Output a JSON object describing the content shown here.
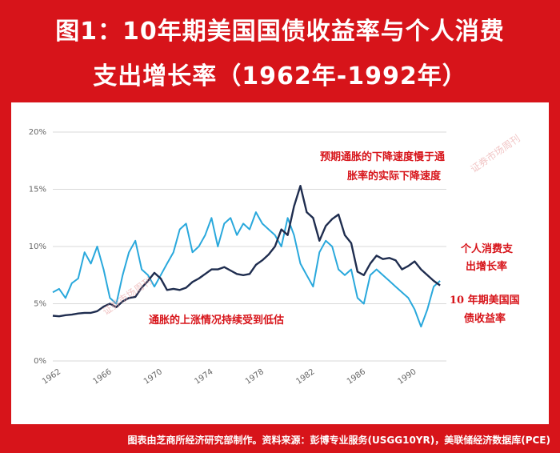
{
  "header": {
    "line1": "图1：10年期美国国债收益率与个人消费",
    "line2": "支出增长率（1962年-1992年）"
  },
  "footer": {
    "source": "图表由芝商所经济研究部制作。资料来源：彭博专业服务(USGG10YR)，美联储经济数据库(PCE)"
  },
  "watermark": "证券市场周刊",
  "chart_data": {
    "type": "line",
    "title": "",
    "xlabel": "",
    "ylabel": "",
    "ylim": [
      0,
      20
    ],
    "xlim": [
      1962,
      1993
    ],
    "grid": "horizontal",
    "y_ticks": [
      "0%",
      "5%",
      "10%",
      "15%",
      "20%"
    ],
    "x_ticks": [
      "1962",
      "1966",
      "1970",
      "1974",
      "1978",
      "1982",
      "1986",
      "1990"
    ],
    "series": [
      {
        "name": "个人消费支出增长率",
        "color": "#29a8dc",
        "x": [
          1962,
          1962.5,
          1963,
          1963.5,
          1964,
          1964.5,
          1965,
          1965.5,
          1966,
          1966.5,
          1967,
          1967.5,
          1968,
          1968.5,
          1969,
          1969.5,
          1970,
          1970.5,
          1971,
          1971.5,
          1972,
          1972.5,
          1973,
          1973.5,
          1974,
          1974.5,
          1975,
          1975.5,
          1976,
          1976.5,
          1977,
          1977.5,
          1978,
          1978.5,
          1979,
          1979.5,
          1980,
          1980.5,
          1981,
          1981.5,
          1982,
          1982.5,
          1983,
          1983.5,
          1984,
          1984.5,
          1985,
          1985.5,
          1986,
          1986.5,
          1987,
          1987.5,
          1988,
          1988.5,
          1989,
          1989.5,
          1990,
          1990.5,
          1991,
          1991.5,
          1992,
          1992.5
        ],
        "values": [
          6.0,
          6.3,
          5.5,
          6.8,
          7.2,
          9.5,
          8.5,
          10.0,
          8.0,
          5.5,
          5.0,
          7.5,
          9.5,
          10.5,
          8.0,
          7.5,
          6.5,
          7.5,
          8.5,
          9.5,
          11.5,
          12.0,
          9.5,
          10.0,
          11.0,
          12.5,
          10.0,
          12.0,
          12.5,
          11.0,
          12.0,
          11.5,
          13.0,
          12.0,
          11.5,
          11.0,
          10.0,
          12.5,
          11.0,
          8.5,
          7.5,
          6.5,
          9.5,
          10.5,
          10.0,
          8.0,
          7.5,
          8.0,
          5.5,
          5.0,
          7.5,
          8.0,
          7.5,
          7.0,
          6.5,
          6.0,
          5.5,
          4.5,
          3.0,
          4.5,
          6.5,
          7.0
        ]
      },
      {
        "name": "10年期美国国债收益率",
        "color": "#1f2d4f",
        "x": [
          1962,
          1962.5,
          1963,
          1963.5,
          1964,
          1964.5,
          1965,
          1965.5,
          1966,
          1966.5,
          1967,
          1967.5,
          1968,
          1968.5,
          1969,
          1969.5,
          1970,
          1970.5,
          1971,
          1971.5,
          1972,
          1972.5,
          1973,
          1973.5,
          1974,
          1974.5,
          1975,
          1975.5,
          1976,
          1976.5,
          1977,
          1977.5,
          1978,
          1978.5,
          1979,
          1979.5,
          1980,
          1980.5,
          1981,
          1981.5,
          1982,
          1982.5,
          1983,
          1983.5,
          1984,
          1984.5,
          1985,
          1985.5,
          1986,
          1986.5,
          1987,
          1987.5,
          1988,
          1988.5,
          1989,
          1989.5,
          1990,
          1990.5,
          1991,
          1991.5,
          1992,
          1992.5
        ],
        "values": [
          3.95,
          3.9,
          4.0,
          4.05,
          4.15,
          4.2,
          4.2,
          4.35,
          4.75,
          5.0,
          4.7,
          5.2,
          5.5,
          5.6,
          6.4,
          7.0,
          7.7,
          7.2,
          6.2,
          6.3,
          6.2,
          6.4,
          6.9,
          7.2,
          7.6,
          8.0,
          8.0,
          8.2,
          7.9,
          7.6,
          7.5,
          7.6,
          8.4,
          8.8,
          9.3,
          10.0,
          11.5,
          11.0,
          13.5,
          15.3,
          13.0,
          12.5,
          10.5,
          11.8,
          12.4,
          12.8,
          11.0,
          10.3,
          7.8,
          7.5,
          8.5,
          9.2,
          8.9,
          9.0,
          8.8,
          8.0,
          8.3,
          8.7,
          8.0,
          7.5,
          7.0,
          6.6
        ]
      }
    ],
    "annotations": [
      {
        "text": "预期通胀的下降速度慢于通",
        "color": "#d7141a"
      },
      {
        "text": "胀率的实际下降速度",
        "color": "#d7141a"
      },
      {
        "text": "通胀的上涨情况持续受到低估",
        "color": "#d7141a"
      }
    ],
    "labels": [
      {
        "text": "个人消费支",
        "color": "#d7141a"
      },
      {
        "text": "出增长率",
        "color": "#d7141a"
      },
      {
        "text": "10 年期美国国",
        "color": "#d7141a"
      },
      {
        "text": "债收益率",
        "color": "#d7141a"
      }
    ]
  }
}
